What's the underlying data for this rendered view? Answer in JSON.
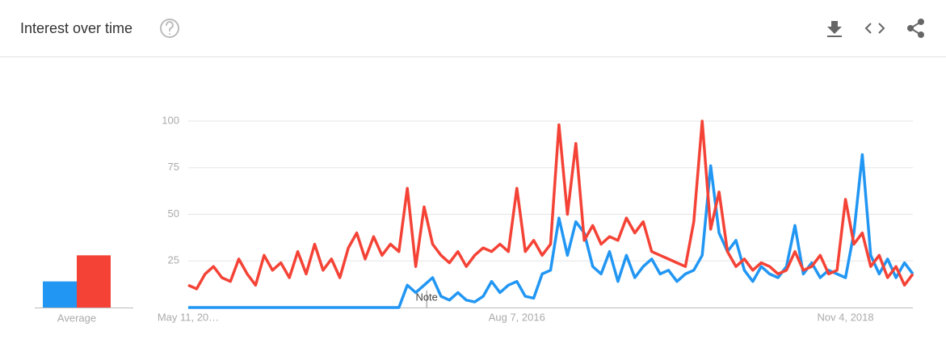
{
  "chart_data": [
    {
      "type": "line",
      "title": "Interest over time",
      "categories": [
        "May 11, 20…",
        null,
        null,
        null,
        null,
        null,
        null,
        null,
        null,
        null,
        null,
        null,
        null,
        null,
        null,
        null,
        null,
        null,
        null,
        null,
        null,
        null,
        null,
        null,
        null,
        null,
        null,
        null,
        null,
        null,
        null,
        null,
        null,
        null,
        null,
        null,
        null,
        null,
        null,
        "Aug 7, 2016",
        null,
        null,
        null,
        null,
        null,
        null,
        null,
        null,
        null,
        null,
        null,
        null,
        null,
        null,
        null,
        null,
        null,
        null,
        null,
        null,
        null,
        null,
        null,
        null,
        null,
        null,
        null,
        null,
        null,
        null,
        null,
        null,
        null,
        null,
        null,
        null,
        null,
        null,
        "Nov 4, 2018",
        null,
        null,
        null,
        null,
        null,
        null,
        null,
        null
      ],
      "series": [
        {
          "color": "#2196f3",
          "values": [
            0,
            0,
            0,
            0,
            0,
            0,
            0,
            0,
            0,
            0,
            0,
            0,
            0,
            0,
            0,
            0,
            0,
            0,
            0,
            0,
            0,
            0,
            0,
            0,
            0,
            0,
            12,
            8,
            12,
            16,
            6,
            4,
            8,
            4,
            3,
            6,
            14,
            8,
            12,
            14,
            6,
            5,
            18,
            20,
            48,
            28,
            46,
            40,
            22,
            18,
            30,
            14,
            28,
            16,
            22,
            26,
            18,
            20,
            14,
            18,
            20,
            28,
            76,
            40,
            30,
            36,
            20,
            14,
            22,
            18,
            16,
            22,
            44,
            18,
            24,
            16,
            20,
            18,
            16,
            40,
            82,
            28,
            18,
            26,
            16,
            24,
            18
          ]
        },
        {
          "color": "#f44336",
          "values": [
            12,
            10,
            18,
            22,
            16,
            14,
            26,
            18,
            12,
            28,
            20,
            24,
            16,
            30,
            18,
            34,
            20,
            26,
            16,
            32,
            40,
            26,
            38,
            28,
            34,
            30,
            64,
            22,
            54,
            34,
            28,
            24,
            30,
            22,
            28,
            32,
            30,
            34,
            30,
            64,
            30,
            36,
            28,
            34,
            98,
            50,
            88,
            36,
            44,
            34,
            38,
            36,
            48,
            40,
            46,
            30,
            28,
            26,
            24,
            22,
            46,
            100,
            42,
            62,
            30,
            22,
            26,
            20,
            24,
            22,
            18,
            20,
            30,
            20,
            22,
            28,
            18,
            20,
            58,
            34,
            40,
            22,
            28,
            16,
            22,
            12,
            18
          ]
        }
      ],
      "annotations": [
        "Note"
      ],
      "ylim": [
        0,
        100
      ],
      "yticks": [
        25,
        50,
        75,
        100
      ],
      "grid": true
    },
    {
      "type": "bar",
      "categories": [
        "Average"
      ],
      "series": [
        {
          "color": "#2196f3",
          "values": [
            14
          ]
        },
        {
          "color": "#f44336",
          "values": [
            28
          ]
        }
      ],
      "ylim": [
        0,
        100
      ]
    }
  ]
}
